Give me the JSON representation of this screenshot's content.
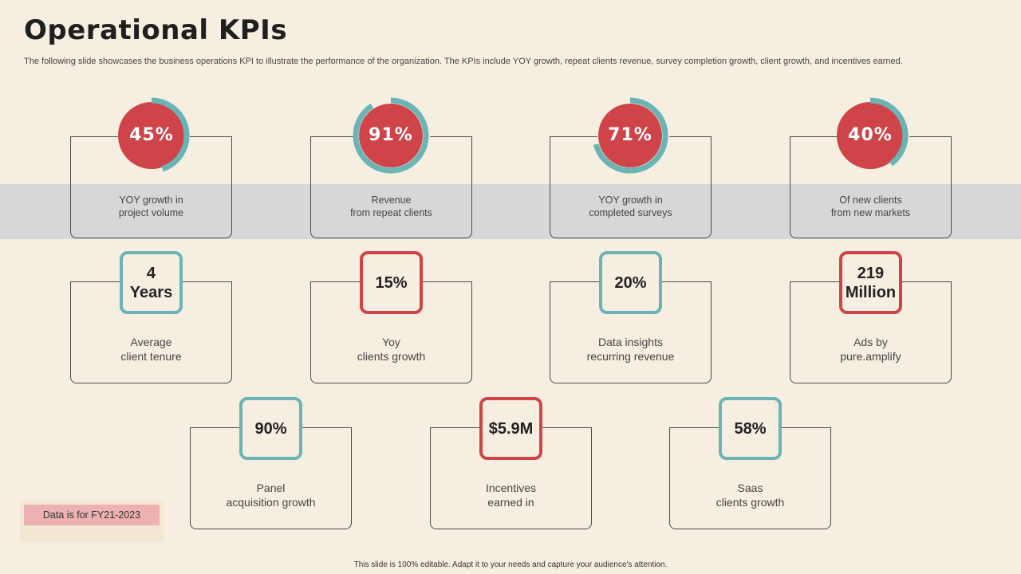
{
  "header": {
    "title": "Operational KPIs",
    "subtitle": "The following slide showcases the business operations KPI to illustrate the performance of the organization. The KPIs include YOY  growth, repeat clients revenue, survey completion growth, client growth, and incentives earned."
  },
  "colors": {
    "red": "#cf4448",
    "teal": "#6ab4b5",
    "background": "#f6eee0",
    "band": "#d7d7d7"
  },
  "donut_kpis": [
    {
      "value_label": "45%",
      "percent": 45,
      "label_line1": "YOY growth in",
      "label_line2": "project volume"
    },
    {
      "value_label": "91%",
      "percent": 91,
      "label_line1": "Revenue",
      "label_line2": "from repeat clients"
    },
    {
      "value_label": "71%",
      "percent": 71,
      "label_line1": "YOY growth in",
      "label_line2": "completed surveys"
    },
    {
      "value_label": "40%",
      "percent": 40,
      "label_line1": "Of new clients",
      "label_line2": "from new markets"
    }
  ],
  "square_kpis": [
    {
      "value_line1": "4",
      "value_line2": "Years",
      "style": "teal",
      "label_line1": "Average",
      "label_line2": "client tenure"
    },
    {
      "value_line1": "15%",
      "value_line2": "",
      "style": "red",
      "label_line1": "Yoy",
      "label_line2": "clients growth"
    },
    {
      "value_line1": "20%",
      "value_line2": "",
      "style": "teal",
      "label_line1": "Data insights",
      "label_line2": "recurring revenue"
    },
    {
      "value_line1": "219",
      "value_line2": "Million",
      "style": "red",
      "label_line1": "Ads by",
      "label_line2": "pure.amplify"
    },
    {
      "value_line1": "90%",
      "value_line2": "",
      "style": "teal",
      "label_line1": "Panel",
      "label_line2": "acquisition growth"
    },
    {
      "value_line1": "$5.9M",
      "value_line2": "",
      "style": "red",
      "label_line1": "Incentives",
      "label_line2": "earned in"
    },
    {
      "value_line1": "58%",
      "value_line2": "",
      "style": "teal",
      "label_line1": "Saas",
      "label_line2": "clients growth"
    }
  ],
  "note": "Data is for FY21-2023",
  "footer": "This slide is 100% editable.  Adapt it to your needs and capture your audience's attention."
}
